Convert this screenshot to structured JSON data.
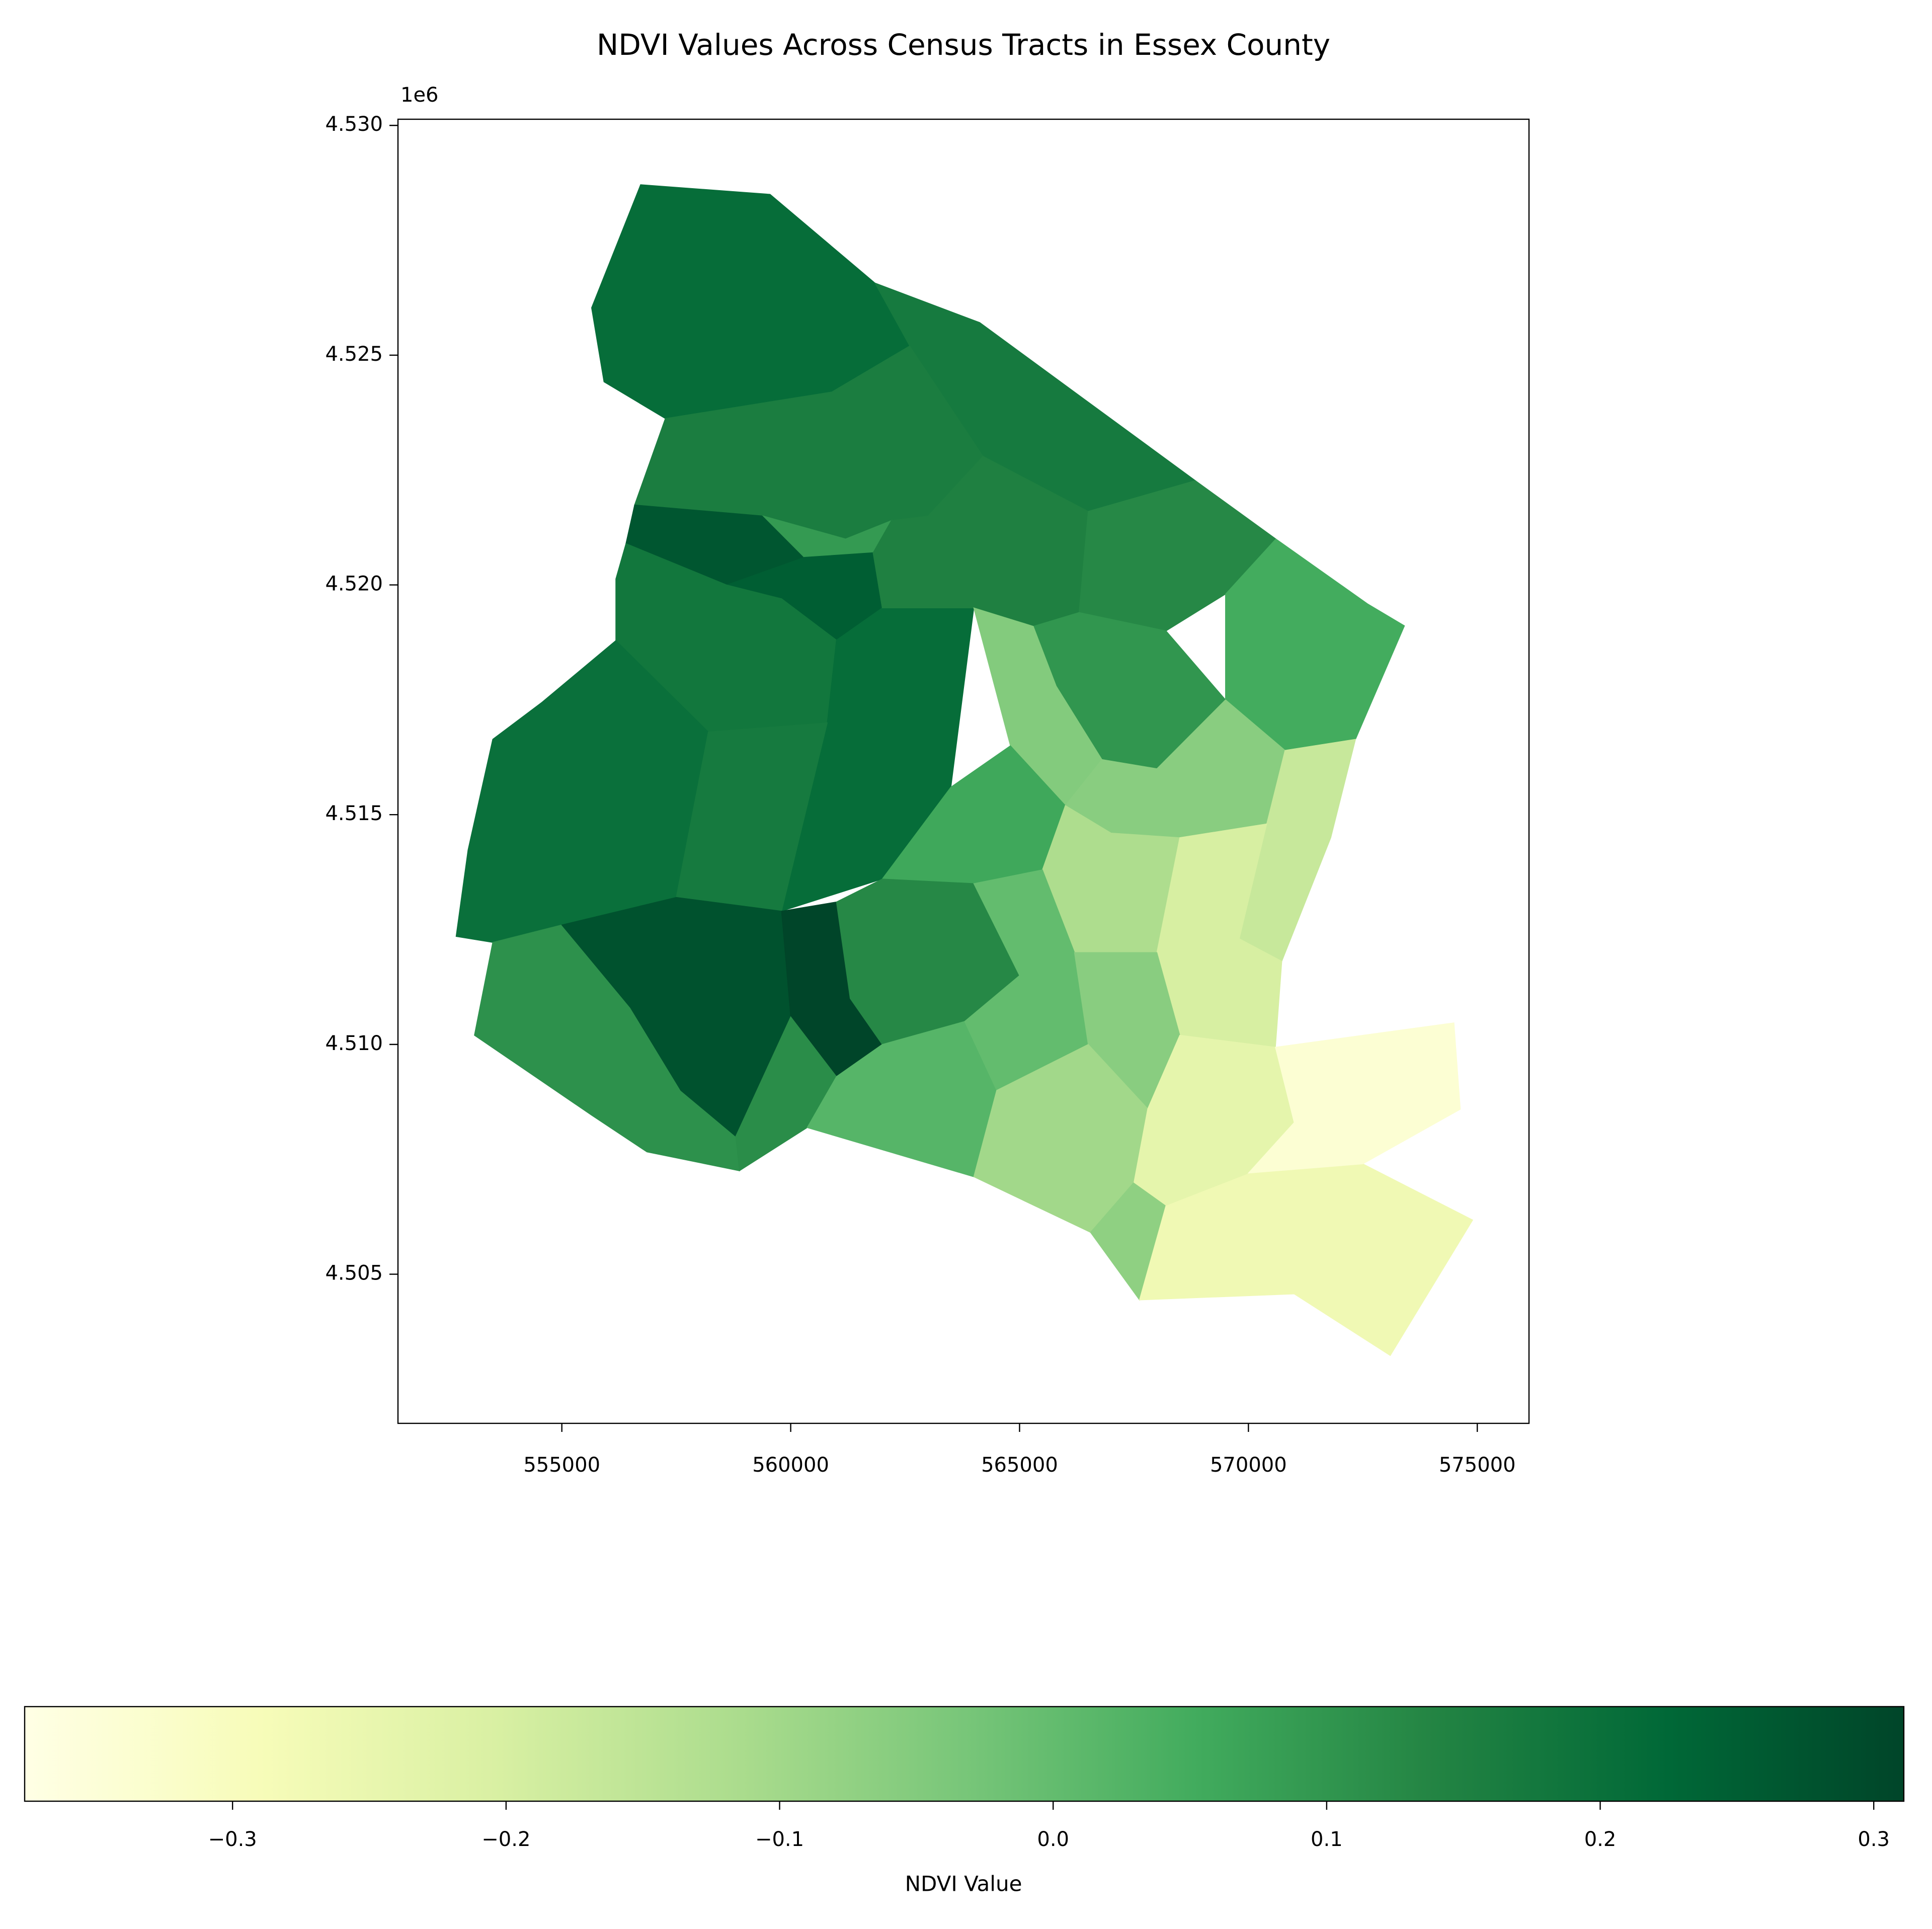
{
  "chart_data": {
    "type": "choropleth",
    "title": "NDVI Values Across Census Tracts in Essex County",
    "cmap": [
      "#ffffe5",
      "#f7fcb9",
      "#d9f0a3",
      "#addd8e",
      "#78c679",
      "#41ab5d",
      "#238443",
      "#006837",
      "#004529"
    ],
    "xlim": [
      551420,
      576130
    ],
    "ylim": [
      4501754,
      4530134
    ],
    "xticks": [
      555000,
      560000,
      565000,
      570000,
      575000
    ],
    "yticks": [
      {
        "value": 4505000,
        "label": "4.505"
      },
      {
        "value": 4510000,
        "label": "4.510"
      },
      {
        "value": 4515000,
        "label": "4.515"
      },
      {
        "value": 4520000,
        "label": "4.520"
      },
      {
        "value": 4525000,
        "label": "4.525"
      },
      {
        "value": 4530000,
        "label": "4.530"
      }
    ],
    "y_offset_label": "1e6",
    "colorbar_label": "NDVI Value",
    "clim": [
      -0.376,
      0.311
    ],
    "colorbar_ticks": [
      {
        "value": -0.3,
        "label": "−0.3"
      },
      {
        "value": -0.2,
        "label": "−0.2"
      },
      {
        "value": -0.1,
        "label": "−0.1"
      },
      {
        "value": 0,
        "label": "0.0"
      },
      0.1,
      0.2,
      0.3
    ],
    "tracts": [
      {
        "value": 0.21,
        "geometry": [
          [
            555650,
            4526030
          ],
          [
            556720,
            4528710
          ],
          [
            559550,
            4528500
          ],
          [
            561840,
            4526570
          ],
          [
            562600,
            4525200
          ],
          [
            560900,
            4524200
          ],
          [
            557260,
            4523620
          ],
          [
            555920,
            4524420
          ]
        ]
      },
      {
        "value": 0.17,
        "geometry": [
          [
            561840,
            4526570
          ],
          [
            564130,
            4525710
          ],
          [
            568840,
            4522270
          ],
          [
            566500,
            4521600
          ],
          [
            564200,
            4522800
          ],
          [
            562600,
            4525200
          ]
        ]
      },
      {
        "value": 0.16,
        "geometry": [
          [
            557260,
            4523620
          ],
          [
            560900,
            4524200
          ],
          [
            562600,
            4525200
          ],
          [
            564200,
            4522800
          ],
          [
            563000,
            4521500
          ],
          [
            561200,
            4521000
          ],
          [
            559400,
            4521500
          ],
          [
            556590,
            4521740
          ]
        ]
      },
      {
        "value": 0.27,
        "geometry": [
          [
            556590,
            4521740
          ],
          [
            559400,
            4521500
          ],
          [
            560300,
            4520600
          ],
          [
            558600,
            4520000
          ],
          [
            556400,
            4520900
          ]
        ]
      },
      {
        "value": 0.09,
        "geometry": [
          [
            559400,
            4521500
          ],
          [
            561200,
            4521000
          ],
          [
            562200,
            4521400
          ],
          [
            561800,
            4520700
          ],
          [
            560300,
            4520600
          ]
        ]
      },
      {
        "value": 0.25,
        "geometry": [
          [
            558600,
            4520000
          ],
          [
            560300,
            4520600
          ],
          [
            561800,
            4520700
          ],
          [
            562000,
            4519500
          ],
          [
            561000,
            4518800
          ],
          [
            559800,
            4519700
          ]
        ]
      },
      {
        "value": 0.18,
        "geometry": [
          [
            556180,
            4520130
          ],
          [
            556400,
            4520900
          ],
          [
            558600,
            4520000
          ],
          [
            559800,
            4519700
          ],
          [
            561000,
            4518800
          ],
          [
            560800,
            4517000
          ],
          [
            558200,
            4516800
          ],
          [
            556180,
            4518790
          ]
        ]
      },
      {
        "value": 0.2,
        "geometry": [
          [
            553490,
            4516640
          ],
          [
            554570,
            4517450
          ],
          [
            556180,
            4518790
          ],
          [
            558200,
            4516800
          ],
          [
            557500,
            4513200
          ],
          [
            555000,
            4512600
          ],
          [
            553490,
            4512220
          ],
          [
            552690,
            4512350
          ],
          [
            552950,
            4514230
          ]
        ]
      },
      {
        "value": 0.21,
        "geometry": [
          [
            561000,
            4518800
          ],
          [
            562000,
            4519500
          ],
          [
            564000,
            4519500
          ],
          [
            563500,
            4515600
          ],
          [
            562000,
            4513600
          ],
          [
            559800,
            4512900
          ],
          [
            560800,
            4517000
          ]
        ]
      },
      {
        "value": 0.17,
        "geometry": [
          [
            558200,
            4516800
          ],
          [
            560800,
            4517000
          ],
          [
            559800,
            4512900
          ],
          [
            557500,
            4513200
          ]
        ]
      },
      {
        "value": 0.15,
        "geometry": [
          [
            563000,
            4521500
          ],
          [
            564200,
            4522800
          ],
          [
            566500,
            4521600
          ],
          [
            566300,
            4519400
          ],
          [
            565300,
            4519100
          ],
          [
            564000,
            4519500
          ],
          [
            562000,
            4519500
          ],
          [
            561800,
            4520700
          ],
          [
            562200,
            4521400
          ]
        ]
      },
      {
        "value": 0.13,
        "geometry": [
          [
            566500,
            4521600
          ],
          [
            568840,
            4522270
          ],
          [
            570600,
            4521000
          ],
          [
            569500,
            4519800
          ],
          [
            568200,
            4519000
          ],
          [
            566300,
            4519400
          ]
        ]
      },
      {
        "value": 0.05,
        "geometry": [
          [
            570600,
            4521000
          ],
          [
            572600,
            4519590
          ],
          [
            573410,
            4519110
          ],
          [
            572340,
            4516640
          ],
          [
            570800,
            4516400
          ],
          [
            569500,
            4517500
          ],
          [
            569500,
            4519800
          ]
        ]
      },
      {
        "value": 0.1,
        "geometry": [
          [
            565300,
            4519100
          ],
          [
            566300,
            4519400
          ],
          [
            568200,
            4519000
          ],
          [
            569500,
            4517500
          ],
          [
            568000,
            4516000
          ],
          [
            566800,
            4516200
          ],
          [
            565800,
            4517800
          ]
        ]
      },
      {
        "value": -0.05,
        "geometry": [
          [
            565300,
            4519100
          ],
          [
            565800,
            4517800
          ],
          [
            566800,
            4516200
          ],
          [
            566000,
            4515200
          ],
          [
            564800,
            4516500
          ],
          [
            564000,
            4519500
          ]
        ]
      },
      {
        "value": 0.06,
        "geometry": [
          [
            563500,
            4515600
          ],
          [
            564800,
            4516500
          ],
          [
            566000,
            4515200
          ],
          [
            565500,
            4513800
          ],
          [
            564000,
            4513500
          ],
          [
            562000,
            4513600
          ]
        ]
      },
      {
        "value": -0.06,
        "geometry": [
          [
            566800,
            4516200
          ],
          [
            568000,
            4516000
          ],
          [
            569500,
            4517500
          ],
          [
            570800,
            4516400
          ],
          [
            570400,
            4514800
          ],
          [
            568500,
            4514500
          ],
          [
            567000,
            4514600
          ],
          [
            566000,
            4515200
          ]
        ]
      },
      {
        "value": -0.17,
        "geometry": [
          [
            570800,
            4516400
          ],
          [
            572340,
            4516640
          ],
          [
            571800,
            4514500
          ],
          [
            570730,
            4511810
          ],
          [
            569800,
            4512300
          ],
          [
            570400,
            4514800
          ]
        ]
      },
      {
        "value": -0.12,
        "geometry": [
          [
            565500,
            4513800
          ],
          [
            566000,
            4515200
          ],
          [
            567000,
            4514600
          ],
          [
            568500,
            4514500
          ],
          [
            568000,
            4512000
          ],
          [
            566200,
            4512000
          ]
        ]
      },
      {
        "value": -0.2,
        "geometry": [
          [
            568500,
            4514500
          ],
          [
            570400,
            4514800
          ],
          [
            569800,
            4512300
          ],
          [
            570730,
            4511810
          ],
          [
            570590,
            4509940
          ],
          [
            568500,
            4510200
          ],
          [
            568000,
            4512000
          ]
        ]
      },
      {
        "value": 0.11,
        "geometry": [
          [
            553490,
            4512220
          ],
          [
            555000,
            4512600
          ],
          [
            556500,
            4510800
          ],
          [
            557600,
            4509000
          ],
          [
            558800,
            4508000
          ],
          [
            558880,
            4507250
          ],
          [
            556860,
            4507660
          ],
          [
            555650,
            4508460
          ],
          [
            553090,
            4510200
          ]
        ]
      },
      {
        "value": 0.28,
        "geometry": [
          [
            555000,
            4512600
          ],
          [
            557500,
            4513200
          ],
          [
            559800,
            4512900
          ],
          [
            560000,
            4510600
          ],
          [
            558800,
            4508000
          ],
          [
            557600,
            4509000
          ],
          [
            556500,
            4510800
          ]
        ]
      },
      {
        "value": 0.31,
        "geometry": [
          [
            559800,
            4512900
          ],
          [
            561000,
            4513100
          ],
          [
            561300,
            4511000
          ],
          [
            562000,
            4510000
          ],
          [
            561000,
            4509300
          ],
          [
            560000,
            4510600
          ]
        ]
      },
      {
        "value": 0.13,
        "geometry": [
          [
            561000,
            4513100
          ],
          [
            562000,
            4513600
          ],
          [
            564000,
            4513500
          ],
          [
            565000,
            4511500
          ],
          [
            563800,
            4510500
          ],
          [
            562000,
            4510000
          ],
          [
            561300,
            4511000
          ]
        ]
      },
      {
        "value": 0.12,
        "geometry": [
          [
            558800,
            4508000
          ],
          [
            560000,
            4510600
          ],
          [
            561000,
            4509300
          ],
          [
            560360,
            4508190
          ],
          [
            558880,
            4507250
          ]
        ]
      },
      {
        "value": 0.02,
        "geometry": [
          [
            561000,
            4509300
          ],
          [
            562000,
            4510000
          ],
          [
            563800,
            4510500
          ],
          [
            564500,
            4509000
          ],
          [
            564000,
            4507120
          ],
          [
            560360,
            4508190
          ]
        ]
      },
      {
        "value": 0.0,
        "geometry": [
          [
            564000,
            4513500
          ],
          [
            565500,
            4513800
          ],
          [
            566200,
            4512000
          ],
          [
            566500,
            4510000
          ],
          [
            564500,
            4509000
          ],
          [
            563800,
            4510500
          ],
          [
            565000,
            4511500
          ]
        ]
      },
      {
        "value": -0.06,
        "geometry": [
          [
            566200,
            4512000
          ],
          [
            568000,
            4512000
          ],
          [
            568500,
            4510200
          ],
          [
            567800,
            4508600
          ],
          [
            566500,
            4510000
          ]
        ]
      },
      {
        "value": -0.1,
        "geometry": [
          [
            564500,
            4509000
          ],
          [
            566500,
            4510000
          ],
          [
            567800,
            4508600
          ],
          [
            567500,
            4507000
          ],
          [
            566550,
            4505910
          ],
          [
            564000,
            4507120
          ]
        ]
      },
      {
        "value": -0.07,
        "geometry": [
          [
            566550,
            4505910
          ],
          [
            567500,
            4507000
          ],
          [
            568200,
            4506500
          ],
          [
            567620,
            4504440
          ]
        ]
      },
      {
        "value": -0.27,
        "geometry": [
          [
            568200,
            4506500
          ],
          [
            570000,
            4507200
          ],
          [
            572500,
            4507400
          ],
          [
            574900,
            4506180
          ],
          [
            573100,
            4503230
          ],
          [
            571000,
            4504570
          ],
          [
            567620,
            4504440
          ]
        ]
      },
      {
        "value": -0.24,
        "geometry": [
          [
            567500,
            4507000
          ],
          [
            567800,
            4508600
          ],
          [
            568500,
            4510200
          ],
          [
            570590,
            4509940
          ],
          [
            571000,
            4508300
          ],
          [
            570000,
            4507200
          ],
          [
            568200,
            4506500
          ]
        ]
      },
      {
        "value": -0.34,
        "geometry": [
          [
            570590,
            4509940
          ],
          [
            574490,
            4510470
          ],
          [
            574630,
            4508590
          ],
          [
            572500,
            4507400
          ],
          [
            570000,
            4507200
          ],
          [
            571000,
            4508300
          ]
        ]
      }
    ]
  }
}
